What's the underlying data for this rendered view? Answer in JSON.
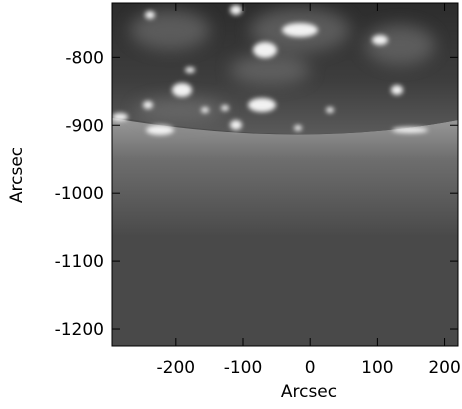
{
  "chart_data": {
    "type": "image",
    "xlabel": "Arcsec",
    "ylabel": "Arcsec",
    "xlim": [
      -295,
      220
    ],
    "ylim": [
      -1225,
      -720
    ],
    "xticks": [
      -200,
      -100,
      0,
      100,
      200
    ],
    "yticks": [
      -1200,
      -1100,
      -1000,
      -900,
      -800
    ]
  }
}
